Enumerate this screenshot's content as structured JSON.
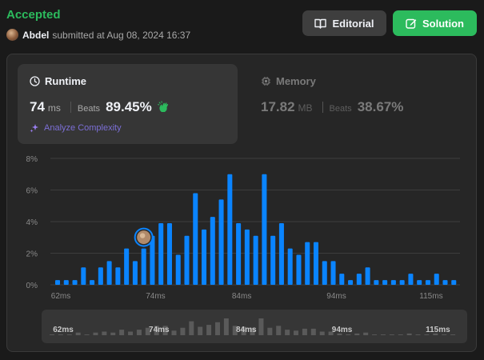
{
  "header": {
    "status": "Accepted",
    "username": "Abdel",
    "submitted_text": "submitted at Aug 08, 2024 16:37",
    "editorial_label": "Editorial",
    "solution_label": "Solution"
  },
  "runtime": {
    "title": "Runtime",
    "value": "74",
    "unit": "ms",
    "beats_label": "Beats",
    "beats_value": "89.45%",
    "analyze_label": "Analyze Complexity"
  },
  "memory": {
    "title": "Memory",
    "value": "17.82",
    "unit": "MB",
    "beats_label": "Beats",
    "beats_value": "38.67%"
  },
  "colors": {
    "accent_green": "#2cbb5d",
    "bar_blue": "#0a84ff",
    "analyze_purple": "#7c6fd6"
  },
  "chart_data": {
    "type": "bar",
    "ylabels": [
      "8%",
      "6%",
      "4%",
      "2%",
      "0%"
    ],
    "ylim": [
      0,
      8
    ],
    "xlabels": [
      "62ms",
      "74ms",
      "84ms",
      "94ms",
      "115ms"
    ],
    "grid": true,
    "values": [
      0.3,
      0.3,
      0.3,
      1.1,
      0.3,
      1.1,
      1.5,
      1.1,
      2.3,
      1.5,
      2.3,
      3.1,
      3.9,
      3.9,
      1.9,
      3.1,
      5.8,
      3.5,
      4.3,
      5.4,
      7.0,
      3.9,
      3.5,
      3.1,
      7.0,
      3.1,
      3.9,
      2.3,
      1.9,
      2.7,
      2.7,
      1.5,
      1.5,
      0.7,
      0.3,
      0.7,
      1.1,
      0.3,
      0.3,
      0.3,
      0.3,
      0.7,
      0.3,
      0.3,
      0.7,
      0.3,
      0.3
    ],
    "highlight_index": 10,
    "highlight_label": "74ms",
    "mini_xlabels": [
      "62ms",
      "74ms",
      "84ms",
      "94ms",
      "115ms"
    ]
  }
}
